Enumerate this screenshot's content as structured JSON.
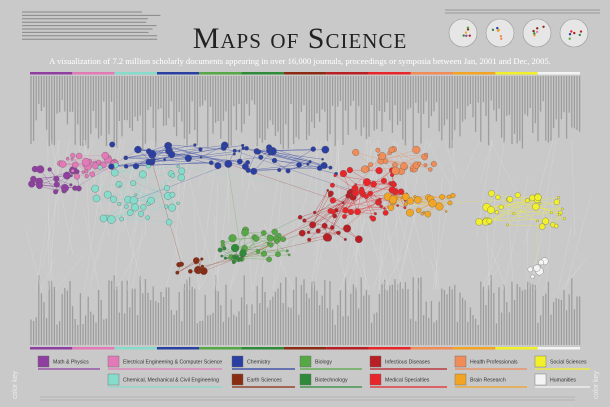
{
  "header": {
    "title": "Maps of Science",
    "subtitle": "A visualization of 7.2 million scholarly documents appearing in over 16,000 journals, proceedings or symposia between Jan, 2001 and Dec, 2005."
  },
  "color_key": {
    "label": "color key",
    "items": [
      {
        "label": "Math & Physics",
        "color": "#8e3fa0"
      },
      {
        "label": "Chemical, Mechanical & Civil Engineering",
        "color": "#86dccb"
      },
      {
        "label": "Electrical Engineering & Computer Science",
        "color": "#e27ab8"
      },
      {
        "label": "Chemistry",
        "color": "#2b3fa3"
      },
      {
        "label": "Earth Sciences",
        "color": "#8a2c12"
      },
      {
        "label": "Biology",
        "color": "#55a844"
      },
      {
        "label": "Biotechnology",
        "color": "#2f8a3a"
      },
      {
        "label": "Infectious Diseases",
        "color": "#b81f24"
      },
      {
        "label": "Medical Specialties",
        "color": "#e8262a"
      },
      {
        "label": "Health Professionals",
        "color": "#f08c58"
      },
      {
        "label": "Brain Research",
        "color": "#f2a524"
      },
      {
        "label": "Social Sciences",
        "color": "#f2f02a"
      },
      {
        "label": "Humanities",
        "color": "#f4f4f4"
      }
    ]
  }
}
